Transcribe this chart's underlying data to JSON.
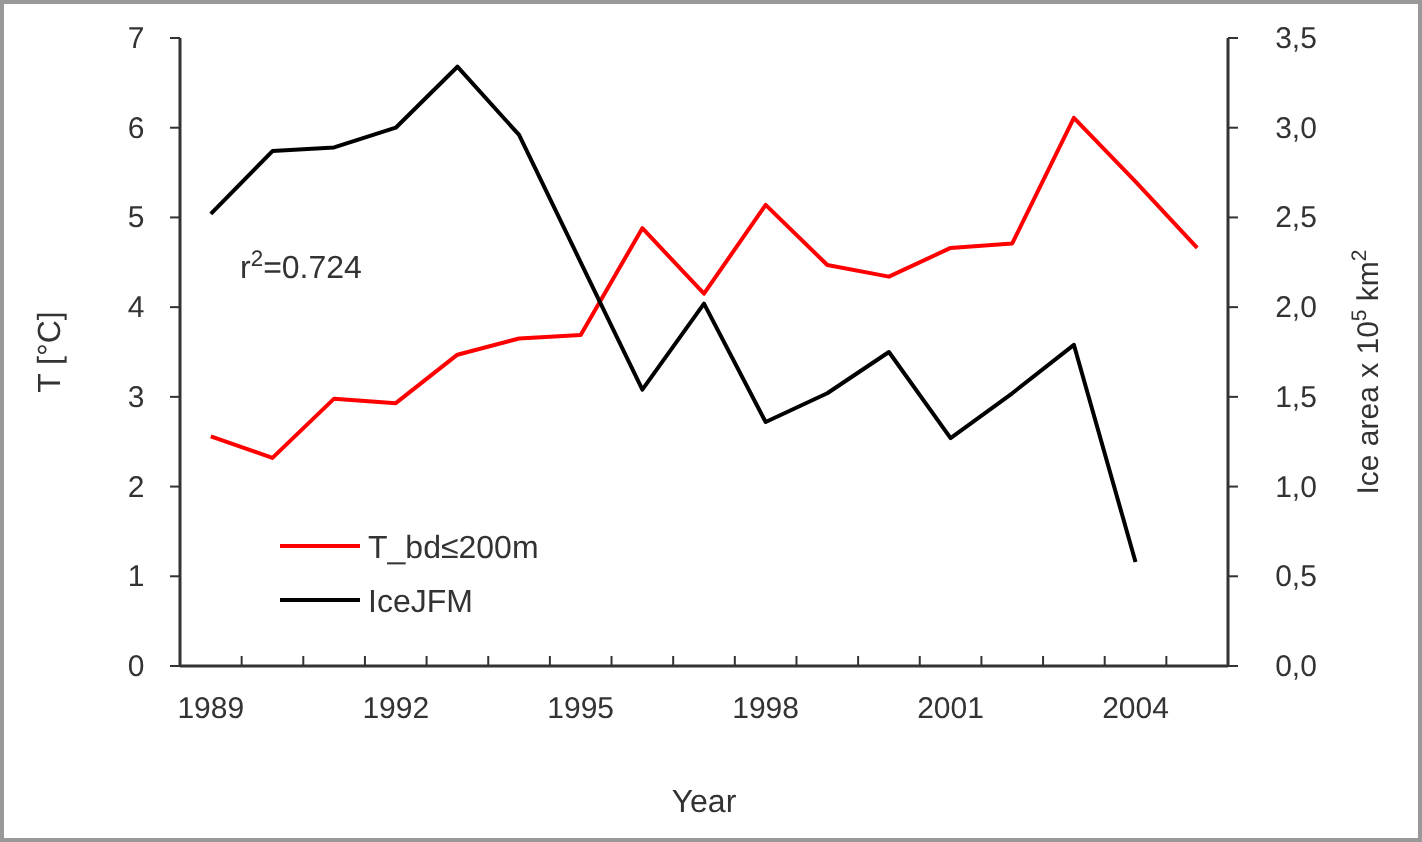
{
  "chart_data": {
    "type": "line",
    "xlabel": "Year",
    "ylabel": "T [°C]",
    "y2label": "Ice area x 10$^{5}$ km$^{2}$",
    "categories": [
      "1989",
      null,
      null,
      "1992",
      null,
      null,
      "1995",
      null,
      null,
      "1998",
      null,
      null,
      "2001",
      null,
      null,
      "2004",
      null
    ],
    "series": [
      {
        "name": "T_bd≤200m",
        "color": "#ff0000",
        "values": [
          2.56,
          2.32,
          2.98,
          2.93,
          3.47,
          3.65,
          3.69,
          4.88,
          4.15,
          5.14,
          4.47,
          4.34,
          4.66,
          4.71,
          6.11,
          5.4,
          4.66
        ]
      },
      {
        "name": "IceJFM",
        "color": "#000000",
        "axis": "y2",
        "values": [
          2.52,
          2.87,
          2.89,
          3.0,
          3.34,
          2.96,
          2.25,
          1.54,
          2.02,
          1.36,
          1.52,
          1.75,
          1.27,
          1.52,
          1.79,
          0.58,
          null
        ]
      }
    ],
    "ylim": [
      0,
      7
    ],
    "yticks": [
      0,
      1,
      2,
      3,
      4,
      5,
      6,
      7
    ],
    "y2lim": [
      0,
      3.5
    ],
    "y2ticks": [
      {
        "value": 0,
        "label": "0,0"
      },
      {
        "value": 0.5,
        "label": "0,5"
      },
      {
        "value": 1,
        "label": "1,0"
      },
      {
        "value": 1.5,
        "label": "1,5"
      },
      {
        "value": 2,
        "label": "2,0"
      },
      {
        "value": 2.5,
        "label": "2,5"
      },
      {
        "value": 3,
        "label": "3,0"
      },
      {
        "value": 3.5,
        "label": "3,5"
      }
    ],
    "annotations": [
      "r$^{2}$=0.724"
    ],
    "legend": "bottom left",
    "grid": false,
    "marker": "none",
    "line_style": "solid"
  }
}
